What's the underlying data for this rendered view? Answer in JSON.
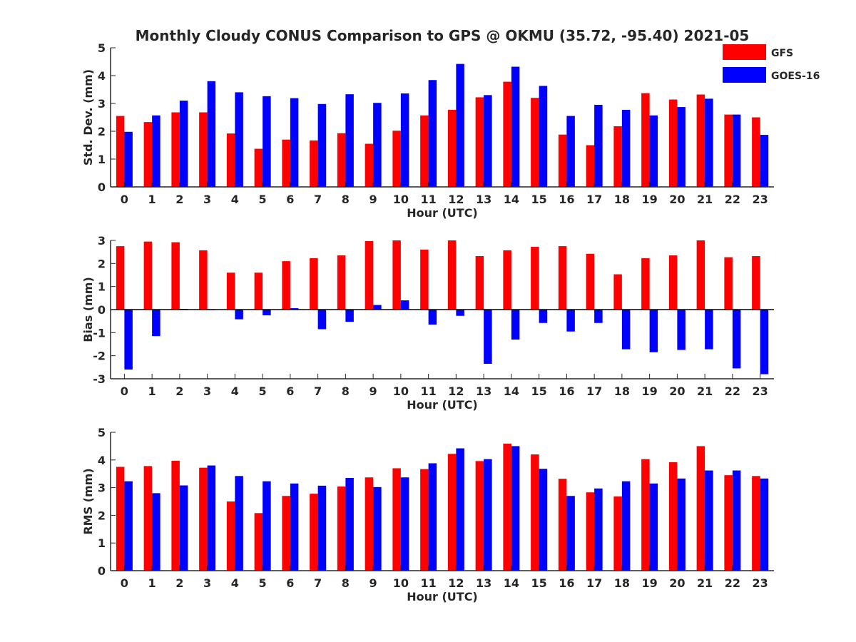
{
  "title": "Monthly Cloudy CONUS Comparison to GPS @ OKMU (35.72, -95.40) 2021-05",
  "legend": {
    "placement": "top-right",
    "entries": [
      {
        "name": "GFS",
        "color": "#ff0000"
      },
      {
        "name": "GOES-16",
        "color": "#0000ff"
      }
    ]
  },
  "chart_data": [
    {
      "type": "bar",
      "xlabel": "Hour (UTC)",
      "ylabel": "Std. Dev. (mm)",
      "ylim": [
        0,
        5
      ],
      "yticks": [
        0,
        1,
        2,
        3,
        4,
        5
      ],
      "categories": [
        "0",
        "1",
        "2",
        "3",
        "4",
        "5",
        "6",
        "7",
        "8",
        "9",
        "10",
        "11",
        "12",
        "13",
        "14",
        "15",
        "16",
        "17",
        "18",
        "19",
        "20",
        "21",
        "22",
        "23"
      ],
      "series": [
        {
          "name": "GFS",
          "color": "#ff0000",
          "values": [
            2.55,
            2.33,
            2.68,
            2.68,
            1.92,
            1.37,
            1.7,
            1.67,
            1.93,
            1.55,
            2.02,
            2.57,
            2.77,
            3.22,
            3.78,
            3.2,
            1.88,
            1.5,
            2.18,
            3.37,
            3.14,
            3.32,
            2.6,
            2.5
          ]
        },
        {
          "name": "GOES-16",
          "color": "#0000ff",
          "values": [
            1.98,
            2.57,
            3.1,
            3.8,
            3.4,
            3.26,
            3.19,
            2.98,
            3.33,
            3.02,
            3.36,
            3.84,
            4.42,
            3.3,
            4.32,
            3.63,
            2.55,
            2.95,
            2.77,
            2.57,
            2.87,
            3.17,
            2.6,
            1.87
          ]
        }
      ]
    },
    {
      "type": "bar",
      "xlabel": "Hour (UTC)",
      "ylabel": "Bias (mm)",
      "ylim": [
        -3,
        3
      ],
      "yticks": [
        -3,
        -2,
        -1,
        0,
        1,
        2,
        3
      ],
      "zero_line": true,
      "categories": [
        "0",
        "1",
        "2",
        "3",
        "4",
        "5",
        "6",
        "7",
        "8",
        "9",
        "10",
        "11",
        "12",
        "13",
        "14",
        "15",
        "16",
        "17",
        "18",
        "19",
        "20",
        "21",
        "22",
        "23"
      ],
      "series": [
        {
          "name": "GFS",
          "color": "#ff0000",
          "values": [
            2.75,
            2.95,
            2.92,
            2.57,
            1.6,
            1.6,
            2.1,
            2.23,
            2.35,
            2.97,
            3.0,
            2.6,
            3.0,
            2.32,
            2.57,
            2.72,
            2.75,
            2.42,
            1.53,
            2.23,
            2.35,
            3.0,
            2.27,
            2.32
          ]
        },
        {
          "name": "GOES-16",
          "color": "#0000ff",
          "values": [
            -2.6,
            -1.15,
            0.03,
            0.0,
            -0.42,
            -0.25,
            0.06,
            -0.85,
            -0.53,
            0.2,
            0.4,
            -0.65,
            -0.27,
            -2.35,
            -1.3,
            -0.58,
            -0.95,
            -0.58,
            -1.72,
            -1.85,
            -1.75,
            -1.72,
            -2.55,
            -2.8
          ]
        }
      ]
    },
    {
      "type": "bar",
      "xlabel": "Hour (UTC)",
      "ylabel": "RMS (mm)",
      "ylim": [
        0,
        5
      ],
      "yticks": [
        0,
        1,
        2,
        3,
        4,
        5
      ],
      "categories": [
        "0",
        "1",
        "2",
        "3",
        "4",
        "5",
        "6",
        "7",
        "8",
        "9",
        "10",
        "11",
        "12",
        "13",
        "14",
        "15",
        "16",
        "17",
        "18",
        "19",
        "20",
        "21",
        "22",
        "23"
      ],
      "series": [
        {
          "name": "GFS",
          "color": "#ff0000",
          "values": [
            3.75,
            3.78,
            3.97,
            3.72,
            2.5,
            2.08,
            2.7,
            2.78,
            3.04,
            3.37,
            3.7,
            3.67,
            4.22,
            3.96,
            4.59,
            4.2,
            3.32,
            2.83,
            2.68,
            4.03,
            3.92,
            4.5,
            3.45,
            3.42
          ]
        },
        {
          "name": "GOES-16",
          "color": "#0000ff",
          "values": [
            3.23,
            2.8,
            3.08,
            3.8,
            3.42,
            3.23,
            3.15,
            3.07,
            3.35,
            3.02,
            3.37,
            3.88,
            4.42,
            4.03,
            4.5,
            3.68,
            2.7,
            2.97,
            3.23,
            3.15,
            3.33,
            3.62,
            3.62,
            3.33
          ]
        }
      ]
    }
  ]
}
